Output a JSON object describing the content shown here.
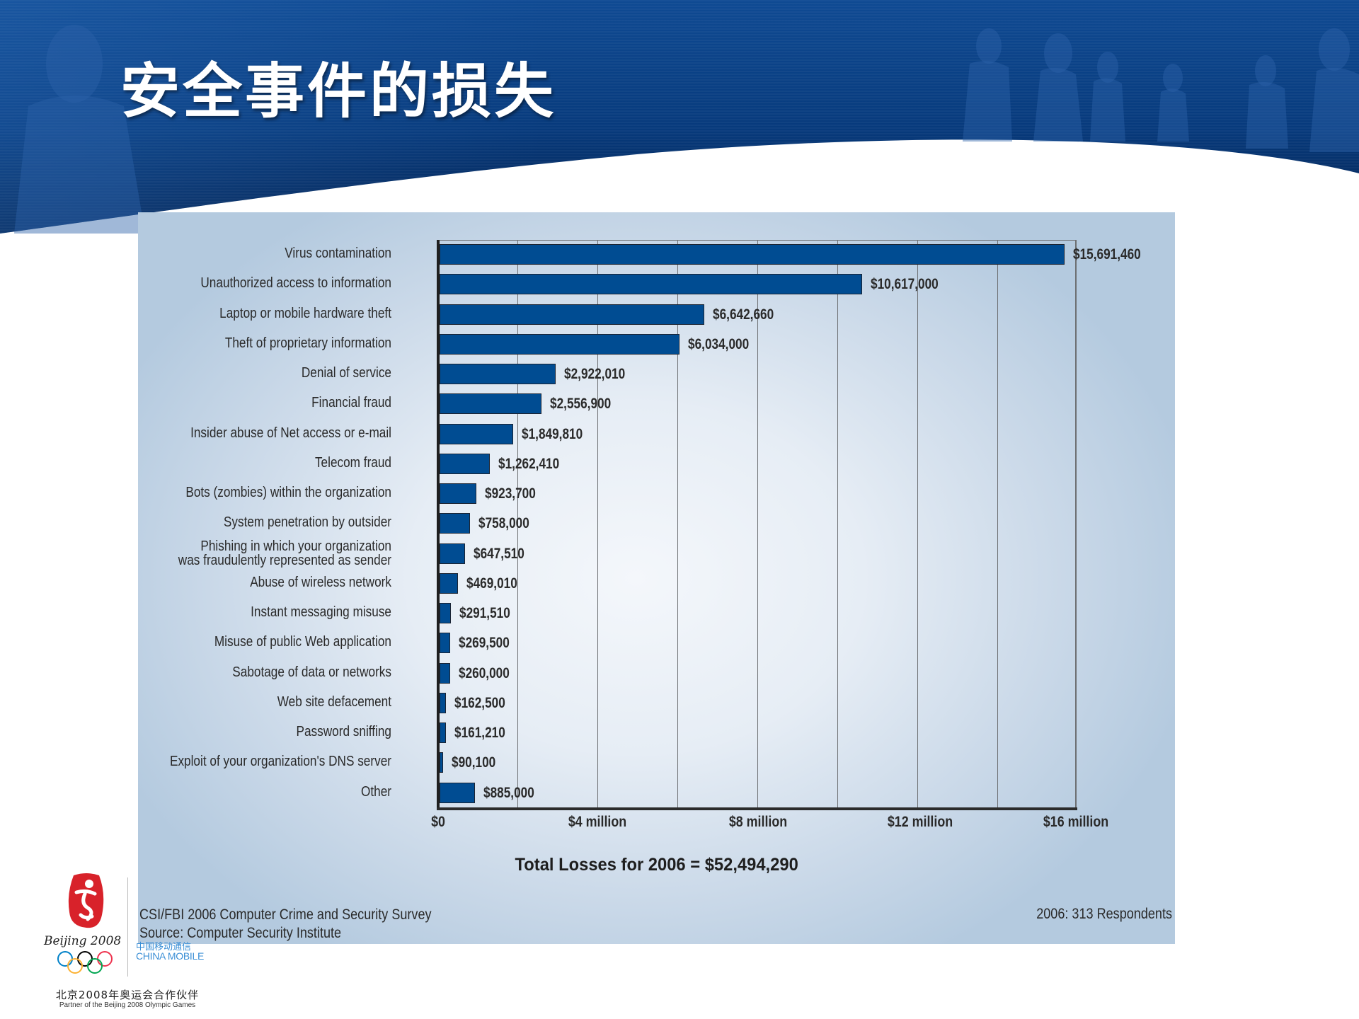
{
  "slide": {
    "title": "安全事件的损失"
  },
  "chart_data": {
    "type": "bar",
    "orientation": "horizontal",
    "title": "Total Losses for 2006 = $52,494,290",
    "xlabel": "",
    "ylabel": "",
    "xlim": [
      0,
      16000000
    ],
    "grid": true,
    "grid_interval": 2000000,
    "x_ticks": [
      0,
      4000000,
      8000000,
      12000000,
      16000000
    ],
    "x_tick_labels": [
      "$0",
      "$4 million",
      "$8 million",
      "$12 million",
      "$16 million"
    ],
    "categories": [
      "Virus contamination",
      "Unauthorized access to information",
      "Laptop or mobile hardware theft",
      "Theft of proprietary information",
      "Denial of service",
      "Financial fraud",
      "Insider abuse of Net access or e-mail",
      "Telecom fraud",
      "Bots (zombies) within the organization",
      "System penetration by outsider",
      "Phishing in which your organization was fraudulently represented as sender",
      "Abuse of wireless network",
      "Instant messaging misuse",
      "Misuse of public Web application",
      "Sabotage of data or networks",
      "Web site defacement",
      "Password sniffing",
      "Exploit of your organization's DNS server",
      "Other"
    ],
    "values": [
      15691460,
      10617000,
      6642660,
      6034000,
      2922010,
      2556900,
      1849810,
      1262410,
      923700,
      758000,
      647510,
      469010,
      291510,
      269500,
      260000,
      162500,
      161210,
      90100,
      885000
    ],
    "value_labels": [
      "$15,691,460",
      "$10,617,000",
      "$6,642,660",
      "$6,034,000",
      "$2,922,010",
      "$2,556,900",
      "$1,849,810",
      "$1,262,410",
      "$923,700",
      "$758,000",
      "$647,510",
      "$469,010",
      "$291,510",
      "$269,500",
      "$260,000",
      "$162,500",
      "$161,210",
      "$90,100",
      "$885,000"
    ],
    "total_label": "Total Losses for 2006 = $52,494,290",
    "source_line1": "CSI/FBI 2006 Computer Crime and Security Survey",
    "source_line2": "Source: Computer Security Institute",
    "respondents": "2006: 313 Respondents",
    "bar_color": "#004c92"
  },
  "chart": {
    "rows": [
      {
        "label": "Virus contamination",
        "value": "$15,691,460",
        "amount": 15691460
      },
      {
        "label": "Unauthorized access to information",
        "value": "$10,617,000",
        "amount": 10617000
      },
      {
        "label": "Laptop or mobile hardware theft",
        "value": "$6,642,660",
        "amount": 6642660
      },
      {
        "label": "Theft of proprietary information",
        "value": "$6,034,000",
        "amount": 6034000
      },
      {
        "label": "Denial of service",
        "value": "$2,922,010",
        "amount": 2922010
      },
      {
        "label": "Financial fraud",
        "value": "$2,556,900",
        "amount": 2556900
      },
      {
        "label": "Insider abuse of Net access or e-mail",
        "value": "$1,849,810",
        "amount": 1849810
      },
      {
        "label": "Telecom fraud",
        "value": "$1,262,410",
        "amount": 1262410
      },
      {
        "label": "Bots (zombies) within the organization",
        "value": "$923,700",
        "amount": 923700
      },
      {
        "label": "System penetration by outsider",
        "value": "$758,000",
        "amount": 758000
      },
      {
        "label": "Phishing in which your organization\nwas fraudulently represented as sender",
        "value": "$647,510",
        "amount": 647510
      },
      {
        "label": "Abuse of wireless network",
        "value": "$469,010",
        "amount": 469010
      },
      {
        "label": "Instant messaging misuse",
        "value": "$291,510",
        "amount": 291510
      },
      {
        "label": "Misuse of public Web application",
        "value": "$269,500",
        "amount": 269500
      },
      {
        "label": "Sabotage of data or networks",
        "value": "$260,000",
        "amount": 260000
      },
      {
        "label": "Web site defacement",
        "value": "$162,500",
        "amount": 162500
      },
      {
        "label": "Password sniffing",
        "value": "$161,210",
        "amount": 161210
      },
      {
        "label": "Exploit of your organization's DNS server",
        "value": "$90,100",
        "amount": 90100
      },
      {
        "label": "Other",
        "value": "$885,000",
        "amount": 885000
      }
    ],
    "ticks": [
      {
        "label": "$0",
        "value": 0
      },
      {
        "label": "$4 million",
        "value": 4000000
      },
      {
        "label": "$8 million",
        "value": 8000000
      },
      {
        "label": "$12 million",
        "value": 12000000
      },
      {
        "label": "$16 million",
        "value": 16000000
      }
    ],
    "max": 16000000,
    "total": "Total Losses for 2006 = $52,494,290",
    "source_line1": "CSI/FBI 2006 Computer Crime and Security Survey",
    "source_line2": "Source: Computer Security Institute",
    "respondents": "2006: 313 Respondents"
  },
  "footer": {
    "olympic_text": "Beijing 2008",
    "sponsor_cn": "中国移动通信",
    "sponsor_en": "CHINA MOBILE",
    "partner_cn": "北京2008年奥运会合作伙伴",
    "partner_en": "Partner of the Beijing 2008 Olympic Games"
  },
  "colors": {
    "header_blue": "#0a3f86",
    "bar_fill": "#004c92",
    "panel_bg": "#b4cadf",
    "emblem_red": "#d8222a",
    "sponsor_blue": "#3b8fd6"
  }
}
